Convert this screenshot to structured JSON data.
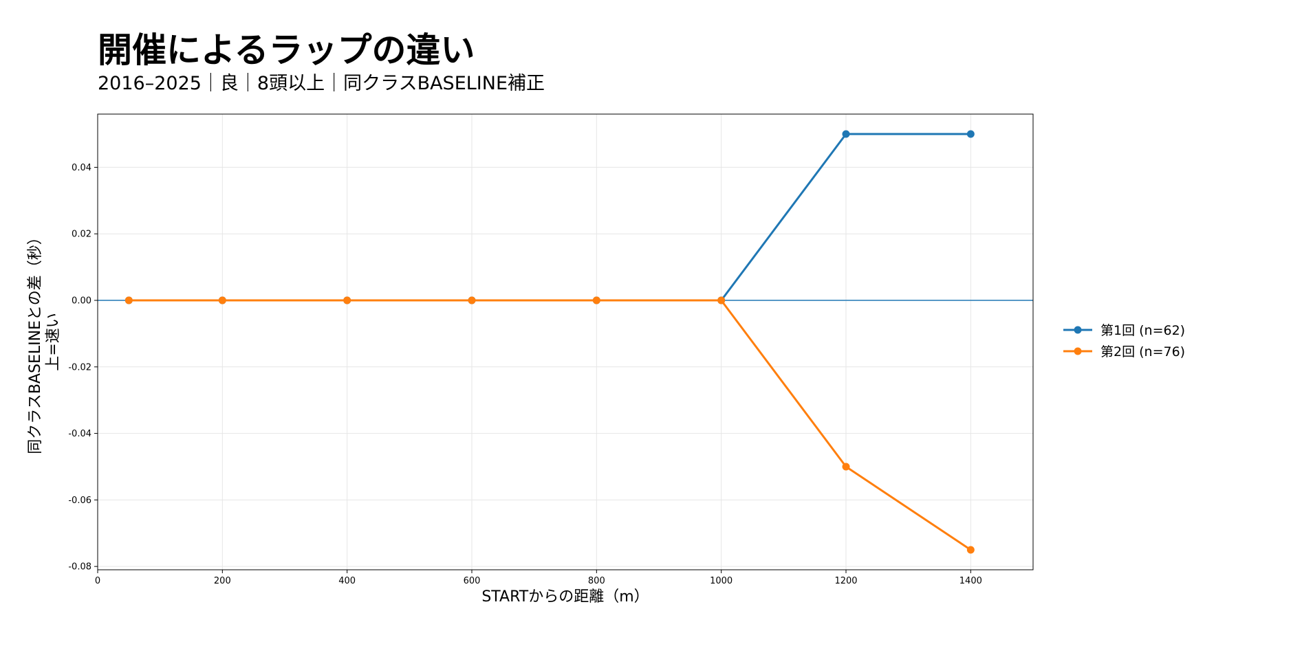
{
  "title": "開催によるラップの違い",
  "subtitle": "2016–2025｜良｜8頭以上｜同クラスBASELINE補正",
  "chart_data": {
    "type": "line",
    "xlabel": "STARTからの距離（m）",
    "ylabel_lines": [
      "同クラスBASELINEとの差（秒）",
      "上=速い"
    ],
    "xlim": [
      0,
      1500
    ],
    "ylim": [
      -0.081,
      0.056
    ],
    "x_ticks": [
      0,
      200,
      400,
      600,
      800,
      1000,
      1200,
      1400
    ],
    "y_ticks": [
      0.04,
      0.02,
      0.0,
      -0.02,
      -0.04,
      -0.06,
      -0.08
    ],
    "y_tick_labels": [
      "0.04",
      "0.02",
      "0.00",
      "-0.02",
      "-0.04",
      "-0.06",
      "-0.08"
    ],
    "grid": true,
    "legend_position": "right",
    "reference_line": {
      "y": 0,
      "color": "#1f77b4"
    },
    "x": [
      50,
      200,
      400,
      600,
      800,
      1000,
      1200,
      1400
    ],
    "series": [
      {
        "name": "第1回 (n=62)",
        "color": "#1f77b4",
        "values": [
          0,
          0,
          0,
          0,
          0,
          0,
          0.05,
          0.05
        ]
      },
      {
        "name": "第2回 (n=76)",
        "color": "#ff7f0e",
        "values": [
          0,
          0,
          0,
          0,
          0,
          0,
          -0.05,
          -0.075
        ]
      }
    ]
  }
}
